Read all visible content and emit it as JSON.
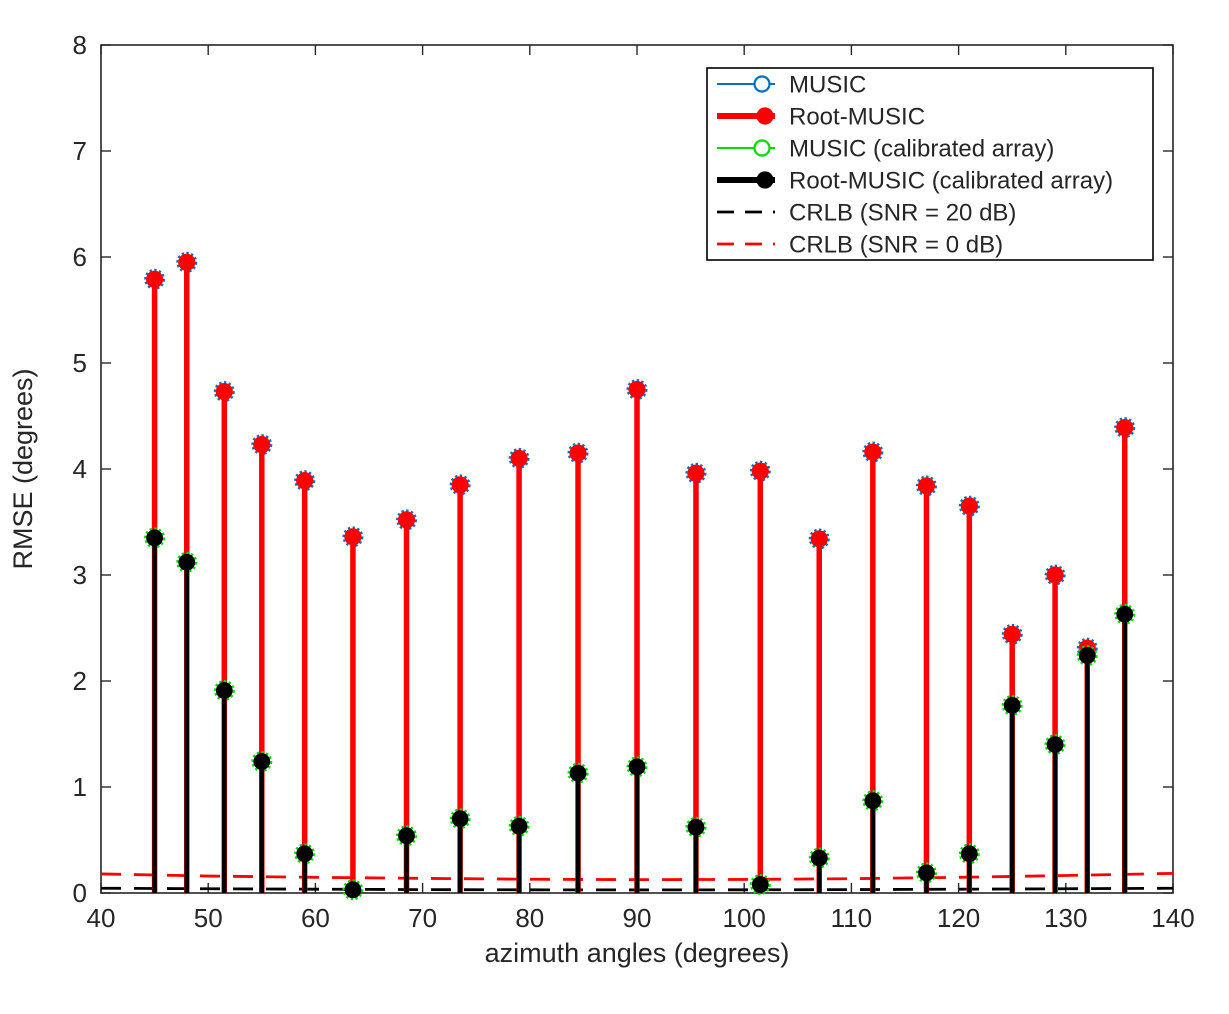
{
  "chart_data": {
    "type": "stem",
    "title": "",
    "xlabel": "azimuth angles (degrees)",
    "ylabel": "RMSE (degrees)",
    "xlim": [
      40,
      140
    ],
    "ylim": [
      0,
      8
    ],
    "xticks": [
      40,
      50,
      60,
      70,
      80,
      90,
      100,
      110,
      120,
      130,
      140
    ],
    "yticks": [
      0,
      1,
      2,
      3,
      4,
      5,
      6,
      7,
      8
    ],
    "grid": false,
    "legend_position": "top-right",
    "x": [
      45,
      48,
      51.5,
      55,
      59,
      63.5,
      68.5,
      73.5,
      79,
      84.5,
      90,
      95.5,
      101.5,
      107,
      112,
      117,
      121,
      125,
      129,
      132,
      135.5
    ],
    "series": [
      {
        "name": "MUSIC",
        "color": "#0072BD",
        "line_width": 2,
        "marker": "open-circle",
        "fully_overlapped_by": "Root-MUSIC",
        "values": [
          5.79,
          5.95,
          4.73,
          4.23,
          3.89,
          3.36,
          3.52,
          3.85,
          4.1,
          4.15,
          4.75,
          3.96,
          3.98,
          3.34,
          4.16,
          3.84,
          3.65,
          2.44,
          3.0,
          2.31,
          4.39
        ]
      },
      {
        "name": "Root-MUSIC",
        "color": "#FF0000",
        "line_width": 5.5,
        "marker": "filled-circle",
        "values": [
          5.79,
          5.95,
          4.73,
          4.23,
          3.89,
          3.36,
          3.52,
          3.85,
          4.1,
          4.15,
          4.75,
          3.96,
          3.98,
          3.34,
          4.16,
          3.84,
          3.65,
          2.44,
          3.0,
          2.31,
          4.39
        ]
      },
      {
        "name": "MUSIC (calibrated array)",
        "color": "#00DB00",
        "line_width": 2,
        "marker": "open-circle",
        "fully_overlapped_by": "Root-MUSIC (calibrated array)",
        "values": [
          3.35,
          3.12,
          1.91,
          1.24,
          0.37,
          0.03,
          0.54,
          0.7,
          0.63,
          1.13,
          1.19,
          0.62,
          0.08,
          0.33,
          0.87,
          0.19,
          0.37,
          1.77,
          1.4,
          2.24,
          2.63
        ]
      },
      {
        "name": "Root-MUSIC (calibrated array)",
        "color": "#000000",
        "line_width": 4.5,
        "marker": "filled-circle",
        "values": [
          3.35,
          3.12,
          1.91,
          1.24,
          0.37,
          0.03,
          0.54,
          0.7,
          0.63,
          1.13,
          1.19,
          0.62,
          0.08,
          0.33,
          0.87,
          0.19,
          0.37,
          1.77,
          1.4,
          2.24,
          2.63
        ]
      }
    ],
    "reference_lines": [
      {
        "name": "CRLB (SNR = 20 dB)",
        "color": "#000000",
        "style": "dashed",
        "x": [
          40,
          50,
          60,
          70,
          80,
          90,
          100,
          110,
          120,
          130,
          140
        ],
        "values": [
          0.045,
          0.04,
          0.036,
          0.032,
          0.03,
          0.029,
          0.03,
          0.032,
          0.036,
          0.04,
          0.045
        ]
      },
      {
        "name": "CRLB (SNR = 0 dB)",
        "color": "#FF0000",
        "style": "dashed",
        "x": [
          40,
          50,
          60,
          70,
          80,
          90,
          100,
          110,
          120,
          130,
          140
        ],
        "values": [
          0.18,
          0.16,
          0.148,
          0.138,
          0.13,
          0.126,
          0.128,
          0.135,
          0.148,
          0.165,
          0.185
        ]
      }
    ],
    "legend": [
      {
        "label": "MUSIC",
        "color": "#0072BD",
        "line_width": 2,
        "marker": "open-circle",
        "dashed": false
      },
      {
        "label": "Root-MUSIC",
        "color": "#FF0000",
        "line_width": 6,
        "marker": "filled-circle",
        "dashed": false
      },
      {
        "label": "MUSIC (calibrated array)",
        "color": "#00DB00",
        "line_width": 2,
        "marker": "open-circle",
        "dashed": false
      },
      {
        "label": "Root-MUSIC (calibrated array)",
        "color": "#000000",
        "line_width": 6,
        "marker": "filled-circle",
        "dashed": false
      },
      {
        "label": "CRLB (SNR = 20 dB)",
        "color": "#000000",
        "line_width": 2.8,
        "marker": null,
        "dashed": true
      },
      {
        "label": "CRLB (SNR = 0 dB)",
        "color": "#FF0000",
        "line_width": 2.8,
        "marker": null,
        "dashed": true
      }
    ],
    "colors": {
      "axis": "#262626",
      "background": "#ffffff"
    }
  }
}
